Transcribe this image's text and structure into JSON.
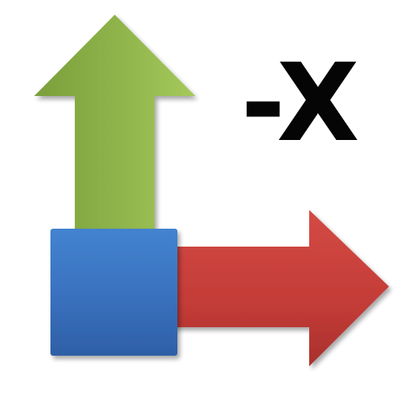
{
  "icon": {
    "label": "-X",
    "colors": {
      "up_arrow": "#8cb04a",
      "right_arrow": "#c9403b",
      "origin_block": "#3b73c2",
      "label_text": "#050505"
    }
  }
}
